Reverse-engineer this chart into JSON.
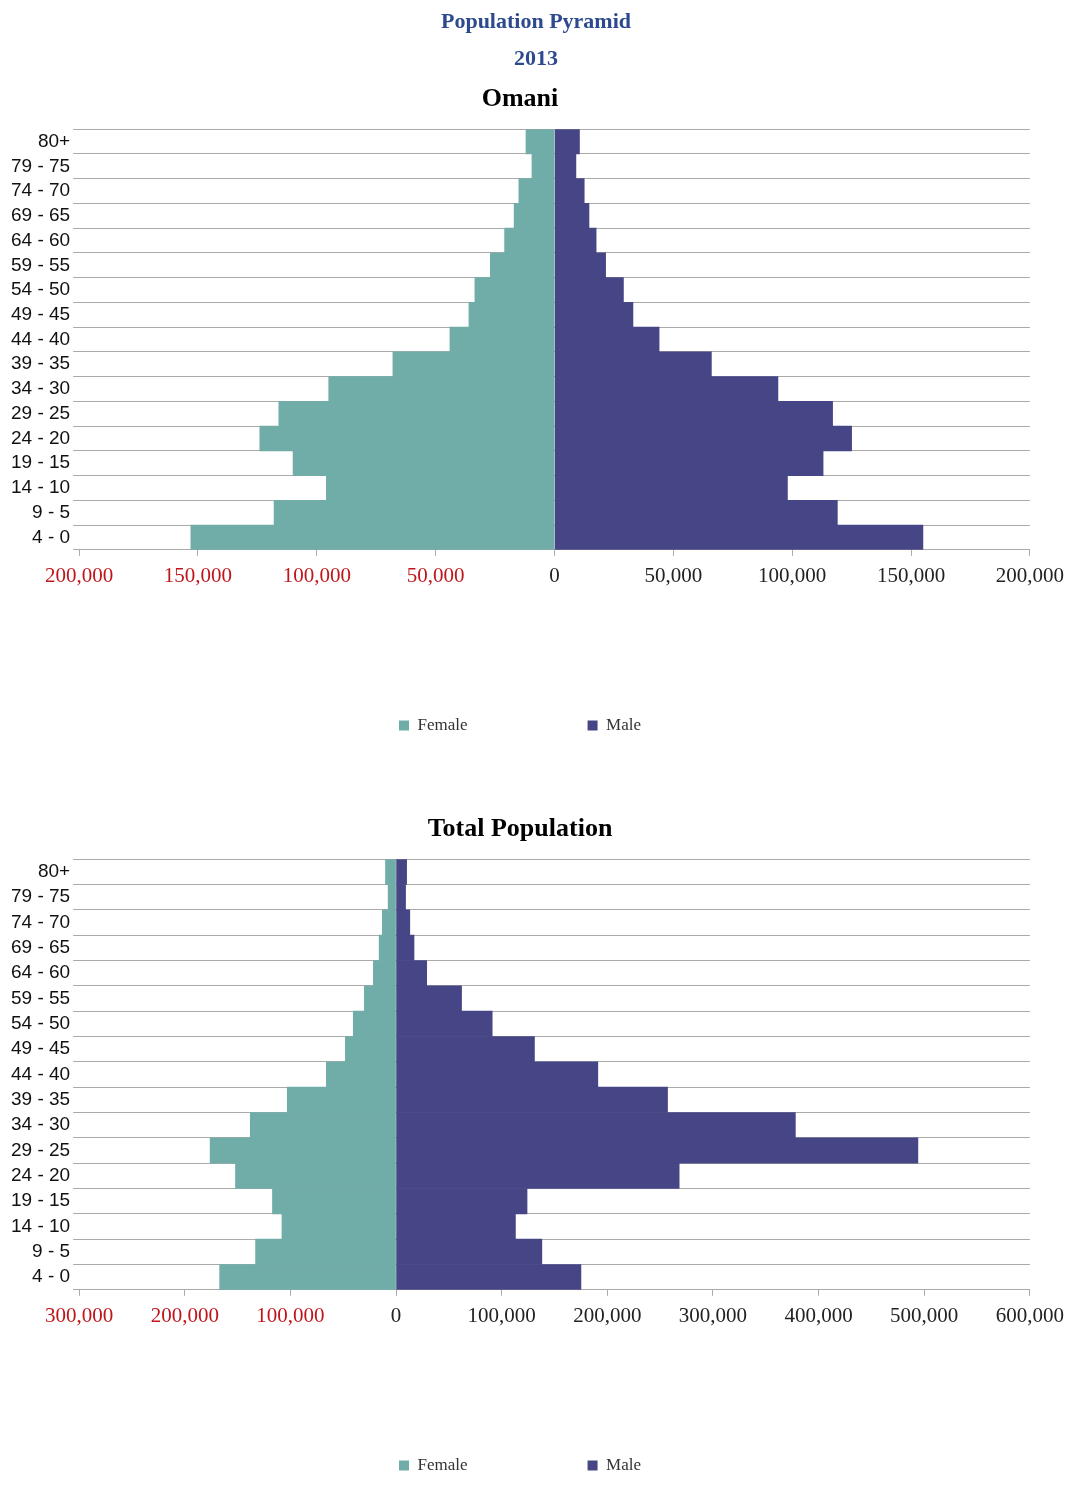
{
  "chart_data": [
    {
      "type": "bar",
      "orientation": "horizontal",
      "stacked": true,
      "title": "Omani",
      "annotations": [
        "Population Pyramid",
        "2013"
      ],
      "categories": [
        "80+",
        "79 - 75",
        "74 - 70",
        "69 - 65",
        "64 - 60",
        "59 - 55",
        "54 - 50",
        "49 - 45",
        "44 - 40",
        "39 - 35",
        "34 - 30",
        "29 - 25",
        "24 - 20",
        "19 - 15",
        "14 - 10",
        "9 - 5",
        "4 - 0"
      ],
      "series": [
        {
          "name": "Female",
          "color": "#70ada9",
          "values": [
            -12000,
            -9500,
            -15000,
            -17000,
            -21000,
            -27000,
            -33500,
            -36000,
            -44000,
            -68000,
            -95000,
            -116000,
            -124000,
            -110000,
            -96000,
            -118000,
            -153000
          ]
        },
        {
          "name": "Male",
          "color": "#464585",
          "values": [
            10500,
            9000,
            12500,
            14500,
            17500,
            21500,
            29000,
            33000,
            44000,
            66000,
            94000,
            117000,
            125000,
            113000,
            98000,
            119000,
            155000
          ]
        }
      ],
      "xlim": [
        -200000,
        200000
      ],
      "xticks": [
        {
          "value": -200000,
          "label": "200,000"
        },
        {
          "value": -150000,
          "label": "150,000"
        },
        {
          "value": -100000,
          "label": "100,000"
        },
        {
          "value": -50000,
          "label": "50,000"
        },
        0,
        {
          "value": 50000,
          "label": "50,000"
        },
        {
          "value": 100000,
          "label": "100,000"
        },
        {
          "value": 150000,
          "label": "150,000"
        },
        {
          "value": 200000,
          "label": "200,000"
        }
      ],
      "grid": "y",
      "legend": "bottom"
    },
    {
      "type": "bar",
      "orientation": "horizontal",
      "stacked": true,
      "title": "Total Population",
      "categories": [
        "80+",
        "79 - 75",
        "74 - 70",
        "69 - 65",
        "64 - 60",
        "59 - 55",
        "54 - 50",
        "49 - 45",
        "44 - 40",
        "39 - 35",
        "34 - 30",
        "29 - 25",
        "24 - 20",
        "19 - 15",
        "14 - 10",
        "9 - 5",
        "4 - 0"
      ],
      "series": [
        {
          "name": "Female",
          "color": "#70ada9",
          "values": [
            -10000,
            -7500,
            -13000,
            -16000,
            -21500,
            -30000,
            -40500,
            -48000,
            -66000,
            -103000,
            -138000,
            -176000,
            -152000,
            -117000,
            -108000,
            -133000,
            -167000
          ]
        },
        {
          "name": "Male",
          "color": "#464585",
          "values": [
            10000,
            9000,
            13000,
            17000,
            29000,
            62000,
            91000,
            131000,
            191000,
            257000,
            378000,
            494000,
            268000,
            124000,
            113000,
            138000,
            175000
          ]
        }
      ],
      "xlim": [
        -300000,
        600000
      ],
      "xticks": [
        {
          "value": -300000,
          "label": "300,000"
        },
        {
          "value": -200000,
          "label": "200,000"
        },
        {
          "value": -100000,
          "label": "100,000"
        },
        0,
        {
          "value": 100000,
          "label": "100,000"
        },
        {
          "value": 200000,
          "label": "200,000"
        },
        {
          "value": 300000,
          "label": "300,000"
        },
        {
          "value": 400000,
          "label": "400,000"
        },
        {
          "value": 500000,
          "label": "500,000"
        },
        {
          "value": 600000,
          "label": "600,000"
        }
      ],
      "grid": "y",
      "legend": "bottom"
    }
  ]
}
